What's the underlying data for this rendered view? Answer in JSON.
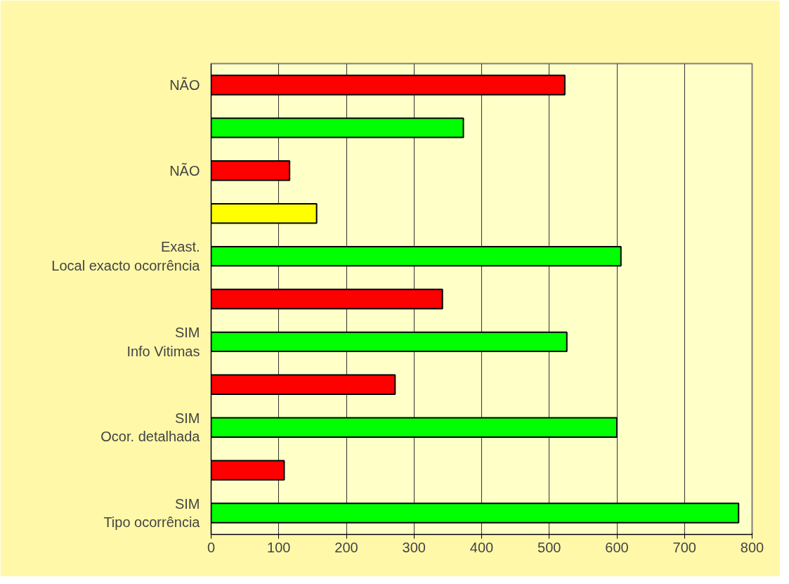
{
  "chart_data": {
    "type": "bar",
    "orientation": "horizontal",
    "categories": [
      "NÃO",
      null,
      "NÃO",
      null,
      "Exast.\nLocal exacto ocorrência",
      null,
      "SIM\nInfo Vitimas",
      null,
      "SIM\nOcor. detalhada",
      null,
      "SIM\nTipo ocorrência"
    ],
    "values": [
      523,
      373,
      116,
      156,
      606,
      342,
      526,
      272,
      600,
      108,
      780
    ],
    "colors": [
      "#ff0000",
      "#00ff00",
      "#ff0000",
      "#ffff00",
      "#00ff00",
      "#ff0000",
      "#00ff00",
      "#ff0000",
      "#00ff00",
      "#ff0000",
      "#00ff00"
    ],
    "xlim": [
      0,
      800
    ],
    "xticks": [
      0,
      100,
      200,
      300,
      400,
      500,
      600,
      700,
      800
    ],
    "grid": "x"
  }
}
